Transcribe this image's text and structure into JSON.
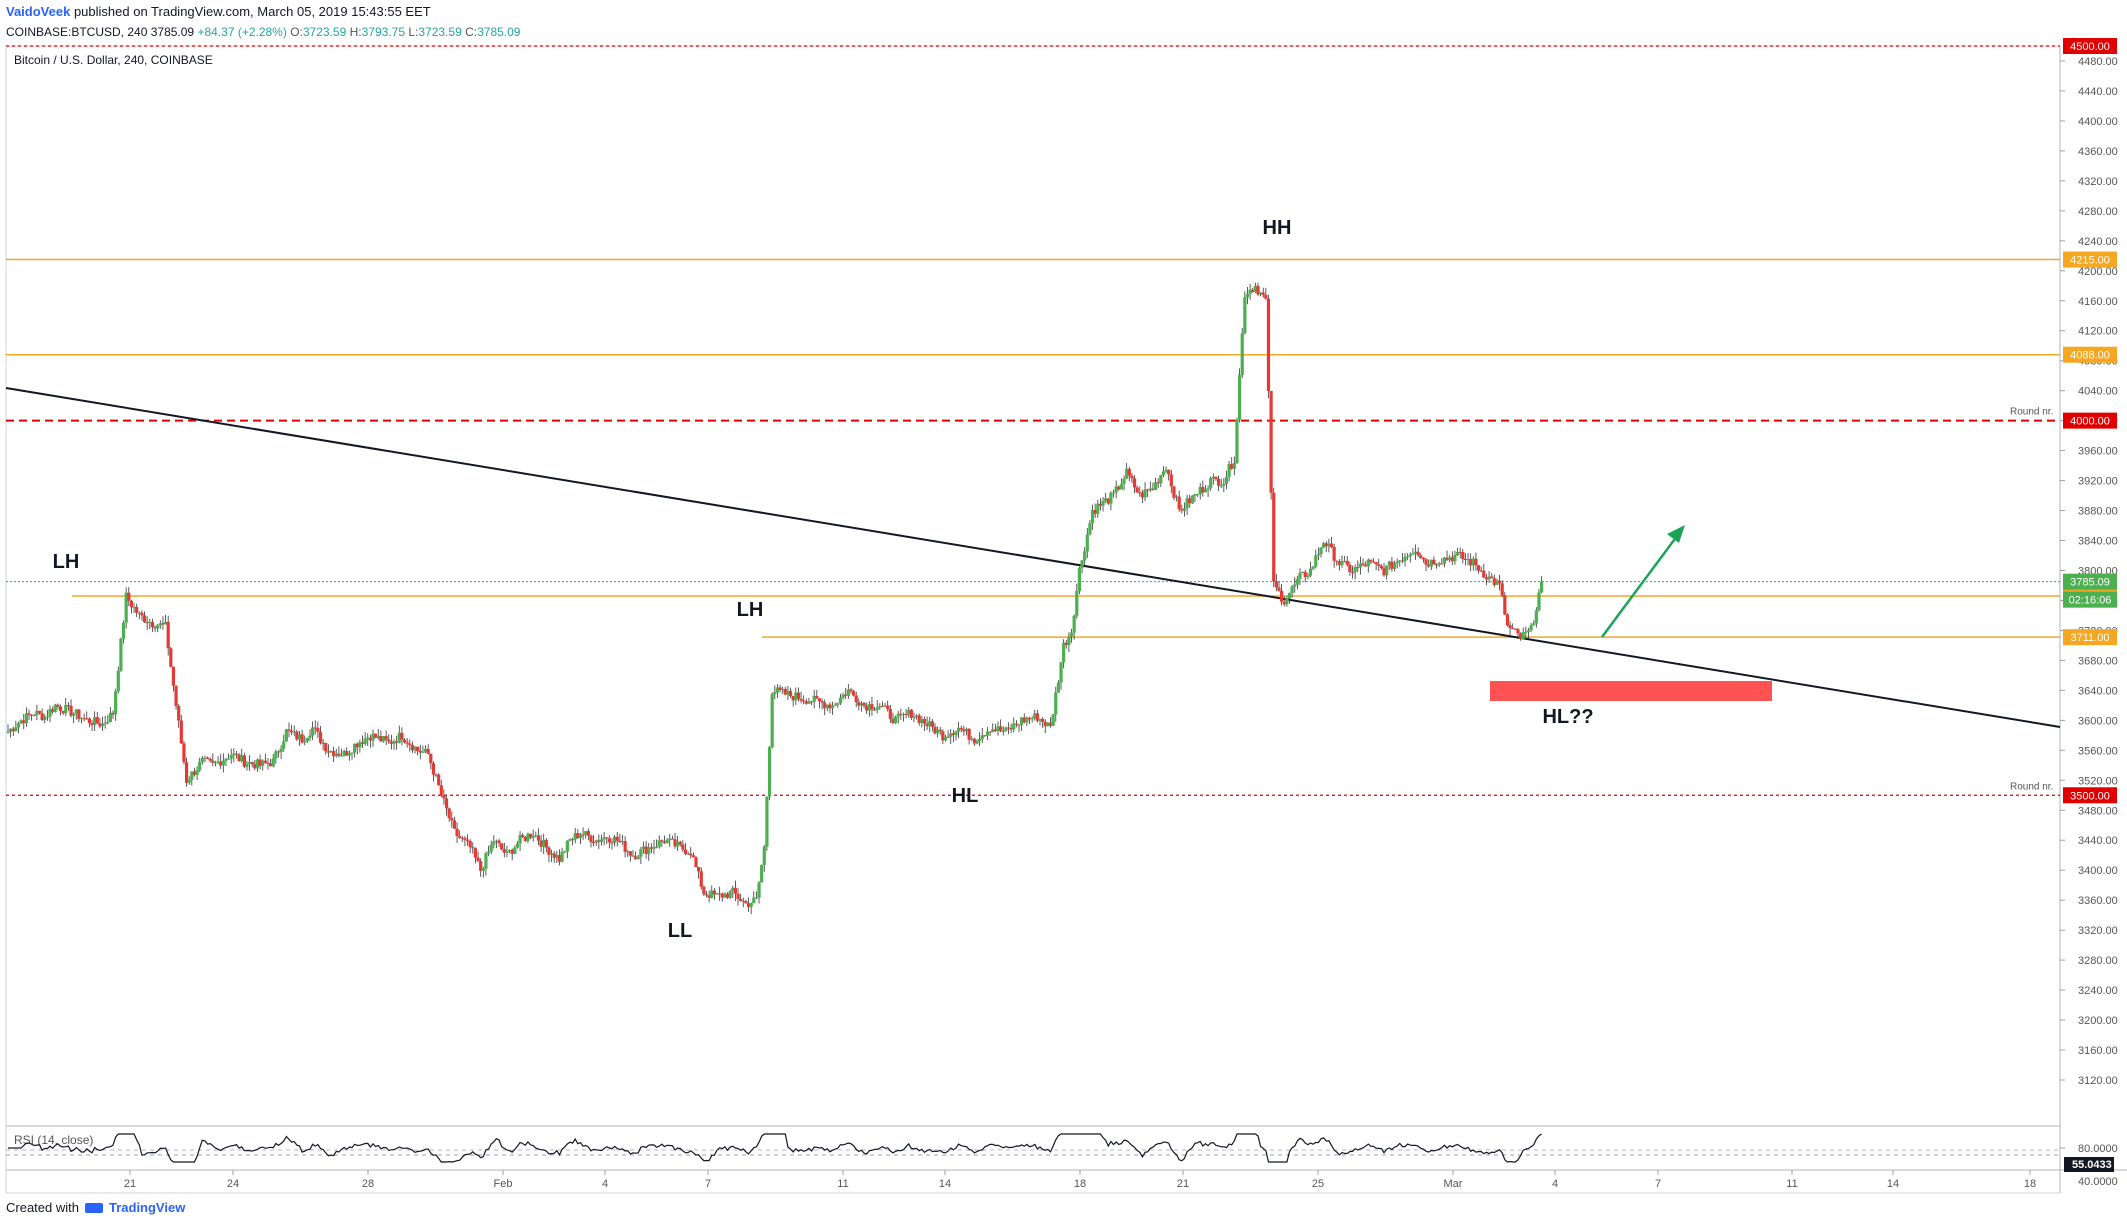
{
  "header": {
    "author": "VaidoVeek",
    "published": "published on TradingView.com, March 05, 2019 15:43:55 EET",
    "symbol": "COINBASE:BTCUSD, 240",
    "last": "3785.09",
    "change": "+84.37 (+2.28%)",
    "o_label": "O:",
    "o": "3723.59",
    "h_label": "H:",
    "h": "3793.75",
    "l_label": "L:",
    "l": "3723.59",
    "c_label": "C:",
    "c": "3785.09"
  },
  "chart_title": "Bitcoin / U.S. Dollar, 240, COINBASE",
  "footer": {
    "created_with": "Created with",
    "brand": "TradingView"
  },
  "colors": {
    "up": "#26a69a",
    "candle_up": "#4caf50",
    "candle_down": "#e53935",
    "orange": "#f5a623",
    "red_line": "#e00000",
    "arrow": "#1aa556",
    "zone": "#ff5252"
  },
  "chart_data": {
    "type": "candlestick",
    "ylim": [
      3120,
      4500
    ],
    "y_ticks": [
      "4480.00",
      "4440.00",
      "4400.00",
      "4360.00",
      "4320.00",
      "4280.00",
      "4240.00",
      "4200.00",
      "4160.00",
      "4120.00",
      "4080.00",
      "4040.00",
      "4000.00",
      "3960.00",
      "3920.00",
      "3880.00",
      "3840.00",
      "3800.00",
      "3760.00",
      "3720.00",
      "3680.00",
      "3640.00",
      "3600.00",
      "3560.00",
      "3520.00",
      "3480.00",
      "3440.00",
      "3400.00",
      "3360.00",
      "3320.00",
      "3280.00",
      "3240.00",
      "3200.00",
      "3160.00",
      "3120.00"
    ],
    "x_ticks": [
      "21",
      "24",
      "28",
      "Feb",
      "4",
      "7",
      "11",
      "14",
      "18",
      "21",
      "25",
      "Mar",
      "4",
      "7",
      "11",
      "14",
      "18"
    ],
    "levels": [
      {
        "price": 4500.0,
        "label": "4500.00",
        "style": "red-dotted"
      },
      {
        "price": 4215.0,
        "label": "4215.00",
        "style": "orange"
      },
      {
        "price": 4088.0,
        "label": "4088.00",
        "style": "orange"
      },
      {
        "price": 4000.0,
        "label": "4000.00",
        "style": "red-dashed",
        "note": "Round nr."
      },
      {
        "price": 3765.9,
        "label": "3765.90",
        "style": "orange"
      },
      {
        "price": 3711.0,
        "label": "3711.00",
        "style": "orange"
      },
      {
        "price": 3500.0,
        "label": "3500.00",
        "style": "red-dotted",
        "note": "Round nr."
      }
    ],
    "last_price": {
      "price": 3785.09,
      "label": "3785.09",
      "countdown": "02:16:06"
    },
    "annotations": [
      "LH",
      "LH",
      "LL",
      "HL",
      "HH",
      "HL??"
    ],
    "close_path": [
      [
        0,
        3585
      ],
      [
        5,
        3600
      ],
      [
        10,
        3610
      ],
      [
        14,
        3605
      ],
      [
        18,
        3620
      ],
      [
        25,
        3610
      ],
      [
        30,
        3600
      ],
      [
        36,
        3595
      ],
      [
        40,
        3610
      ],
      [
        45,
        3765
      ],
      [
        50,
        3740
      ],
      [
        55,
        3730
      ],
      [
        60,
        3725
      ],
      [
        64,
        3620
      ],
      [
        68,
        3520
      ],
      [
        74,
        3545
      ],
      [
        78,
        3540
      ],
      [
        85,
        3555
      ],
      [
        90,
        3545
      ],
      [
        96,
        3540
      ],
      [
        101,
        3545
      ],
      [
        106,
        3585
      ],
      [
        112,
        3575
      ],
      [
        116,
        3590
      ],
      [
        122,
        3560
      ],
      [
        128,
        3555
      ],
      [
        133,
        3570
      ],
      [
        138,
        3580
      ],
      [
        145,
        3570
      ],
      [
        150,
        3580
      ],
      [
        156,
        3560
      ],
      [
        160,
        3555
      ],
      [
        165,
        3500
      ],
      [
        170,
        3450
      ],
      [
        176,
        3430
      ],
      [
        180,
        3400
      ],
      [
        185,
        3440
      ],
      [
        190,
        3420
      ],
      [
        195,
        3440
      ],
      [
        200,
        3450
      ],
      [
        205,
        3430
      ],
      [
        210,
        3415
      ],
      [
        214,
        3440
      ],
      [
        218,
        3450
      ],
      [
        224,
        3440
      ],
      [
        228,
        3445
      ],
      [
        232,
        3440
      ],
      [
        238,
        3420
      ],
      [
        244,
        3430
      ],
      [
        250,
        3440
      ],
      [
        256,
        3430
      ],
      [
        260,
        3425
      ],
      [
        265,
        3370
      ],
      [
        270,
        3365
      ],
      [
        276,
        3370
      ],
      [
        281,
        3355
      ],
      [
        285,
        3360
      ],
      [
        288,
        3430
      ],
      [
        291,
        3640
      ],
      [
        296,
        3635
      ],
      [
        302,
        3630
      ],
      [
        308,
        3625
      ],
      [
        314,
        3620
      ],
      [
        320,
        3640
      ],
      [
        326,
        3620
      ],
      [
        332,
        3620
      ],
      [
        338,
        3600
      ],
      [
        344,
        3610
      ],
      [
        350,
        3595
      ],
      [
        356,
        3580
      ],
      [
        362,
        3590
      ],
      [
        368,
        3575
      ],
      [
        374,
        3590
      ],
      [
        380,
        3585
      ],
      [
        386,
        3600
      ],
      [
        392,
        3605
      ],
      [
        397,
        3590
      ],
      [
        402,
        3700
      ],
      [
        405,
        3720
      ],
      [
        408,
        3800
      ],
      [
        413,
        3880
      ],
      [
        417,
        3890
      ],
      [
        421,
        3900
      ],
      [
        426,
        3930
      ],
      [
        431,
        3900
      ],
      [
        436,
        3910
      ],
      [
        441,
        3940
      ],
      [
        446,
        3880
      ],
      [
        452,
        3900
      ],
      [
        458,
        3920
      ],
      [
        463,
        3920
      ],
      [
        467,
        3950
      ],
      [
        471,
        4170
      ],
      [
        475,
        4180
      ],
      [
        479,
        4160
      ],
      [
        482,
        3780
      ],
      [
        486,
        3760
      ],
      [
        492,
        3790
      ],
      [
        496,
        3800
      ],
      [
        501,
        3840
      ],
      [
        507,
        3810
      ],
      [
        512,
        3800
      ],
      [
        518,
        3810
      ],
      [
        524,
        3800
      ],
      [
        528,
        3810
      ],
      [
        532,
        3820
      ],
      [
        536,
        3830
      ],
      [
        540,
        3810
      ],
      [
        546,
        3815
      ],
      [
        552,
        3820
      ],
      [
        558,
        3810
      ],
      [
        564,
        3790
      ],
      [
        568,
        3780
      ],
      [
        571,
        3725
      ],
      [
        576,
        3710
      ],
      [
        580,
        3720
      ],
      [
        584,
        3785
      ]
    ]
  }
}
